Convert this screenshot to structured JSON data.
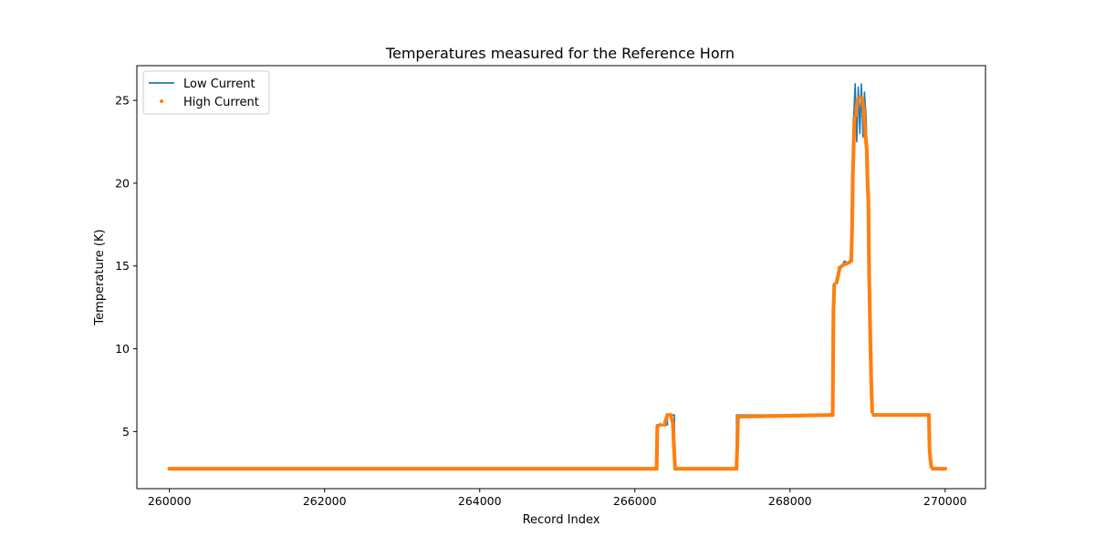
{
  "chart_data": {
    "type": "line",
    "title": "Temperatures measured for the Reference Horn",
    "xlabel": "Record Index",
    "ylabel": "Temperature (K)",
    "xlim": [
      259580,
      270520
    ],
    "ylim": [
      1.55,
      27.1
    ],
    "xticks": [
      260000,
      262000,
      264000,
      266000,
      268000,
      270000
    ],
    "yticks": [
      5,
      10,
      15,
      20,
      25
    ],
    "grid": false,
    "legend_position": "top-left",
    "series": [
      {
        "name": "Low Current",
        "style": "line",
        "color": "#1f77b4",
        "x": [
          260000,
          266280,
          266280,
          266420,
          266420,
          266510,
          266510,
          267310,
          267310,
          268560,
          268560,
          268620,
          268650,
          268700,
          268740,
          268790,
          268800,
          268820,
          268840,
          268860,
          268880,
          268900,
          268920,
          268940,
          268960,
          268980,
          269000,
          269010,
          269020,
          269030,
          269040,
          269050,
          269060,
          269070,
          269080,
          269800,
          269800,
          269830,
          270000
        ],
        "y": [
          2.75,
          2.75,
          5.4,
          5.4,
          6.0,
          6.0,
          2.75,
          2.75,
          6.0,
          6.0,
          13.9,
          14.1,
          14.8,
          15.3,
          15.2,
          15.4,
          20.5,
          23.8,
          26.0,
          22.5,
          25.8,
          23.0,
          26.0,
          22.8,
          25.5,
          24.0,
          21.0,
          19.0,
          15.0,
          13.0,
          10.0,
          8.0,
          6.5,
          6.1,
          6.0,
          6.0,
          3.8,
          2.75,
          2.75
        ]
      },
      {
        "name": "High Current",
        "style": "scatter",
        "color": "#ff7f0e",
        "x": [
          260000,
          266280,
          266290,
          266330,
          266380,
          266420,
          266460,
          266490,
          266500,
          266510,
          266520,
          267310,
          267320,
          267330,
          268550,
          268560,
          268570,
          268600,
          268640,
          268700,
          268760,
          268790,
          268800,
          268810,
          268830,
          268850,
          268870,
          268900,
          268930,
          268950,
          268970,
          268990,
          269000,
          269010,
          269020,
          269030,
          269040,
          269050,
          269060,
          269080,
          269100,
          269790,
          269800,
          269820,
          269840,
          270000
        ],
        "y": [
          2.75,
          2.75,
          5.3,
          5.4,
          5.4,
          6.0,
          6.0,
          5.5,
          4.5,
          3.5,
          2.75,
          2.75,
          4.1,
          5.9,
          6.0,
          12.3,
          13.8,
          14.0,
          14.9,
          15.1,
          15.2,
          15.3,
          17.2,
          20.5,
          23.9,
          24.1,
          25.0,
          25.2,
          25.1,
          24.5,
          23.0,
          22.0,
          20.0,
          19.0,
          14.5,
          12.0,
          9.5,
          7.5,
          6.2,
          6.0,
          6.0,
          6.0,
          3.8,
          2.9,
          2.75,
          2.75
        ]
      }
    ]
  }
}
